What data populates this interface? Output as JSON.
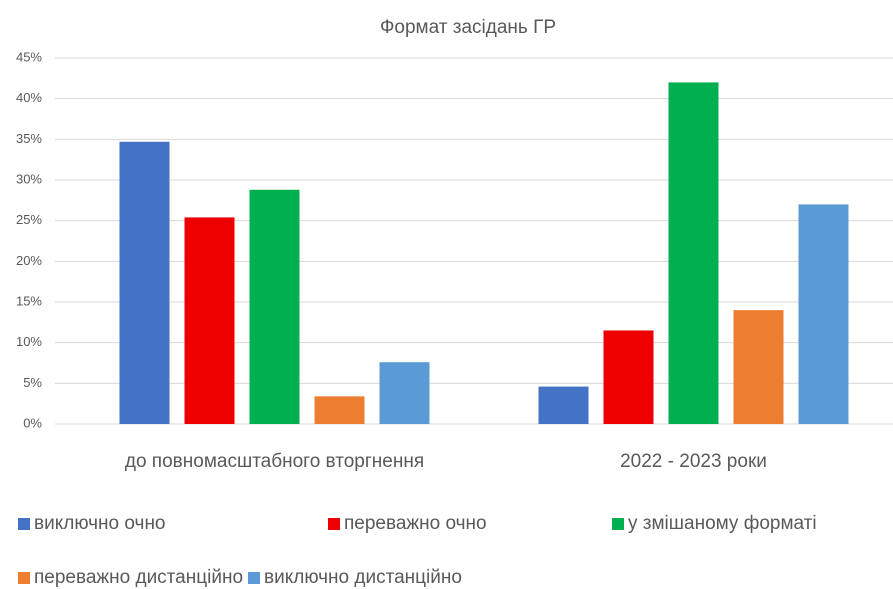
{
  "chart_data": {
    "type": "bar",
    "title": "Формат засідань ГР",
    "categories": [
      "до повномасштабного вторгнення",
      "2022 - 2023 роки"
    ],
    "series": [
      {
        "name": "виключно очно",
        "color": "#4472c4",
        "values": [
          34.7,
          4.6
        ]
      },
      {
        "name": "переважно очно",
        "color": "#ee0000",
        "values": [
          25.4,
          11.5
        ]
      },
      {
        "name": "у змішаному форматі",
        "color": "#00b050",
        "values": [
          28.8,
          42.0
        ]
      },
      {
        "name": "переважно дистанційно",
        "color": "#ed7d31",
        "values": [
          3.4,
          14.0
        ]
      },
      {
        "name": "виключно дистанційно",
        "color": "#5b9bd5",
        "values": [
          7.6,
          27.0
        ]
      }
    ],
    "ylim": [
      0,
      45
    ],
    "yticks": [
      {
        "value": 0,
        "label": "0%"
      },
      {
        "value": 5,
        "label": "5%"
      },
      {
        "value": 10,
        "label": "10%"
      },
      {
        "value": 15,
        "label": "15%"
      },
      {
        "value": 20,
        "label": "20%"
      },
      {
        "value": 25,
        "label": "25%"
      },
      {
        "value": 30,
        "label": "30%"
      },
      {
        "value": 35,
        "label": "35%"
      },
      {
        "value": 40,
        "label": "40%"
      },
      {
        "value": 45,
        "label": "45%"
      }
    ],
    "grid": true,
    "legend": "bottom"
  }
}
